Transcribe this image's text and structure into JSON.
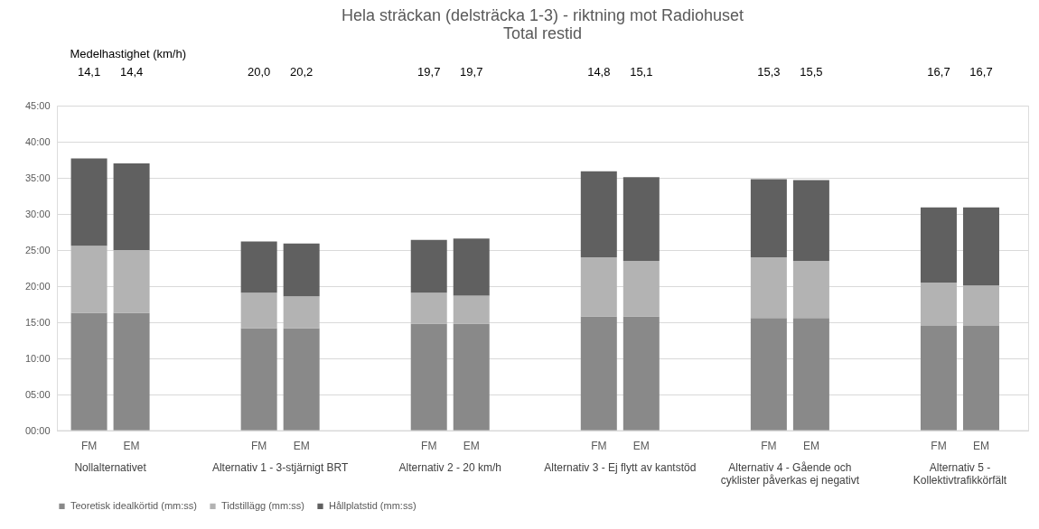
{
  "chart_data": {
    "type": "bar",
    "stacked": true,
    "title": "Hela sträckan (delsträcka 1-3) - riktning mot Radiohuset",
    "subtitle": "Total restid",
    "categories": [
      "FM",
      "EM",
      "FM",
      "EM",
      "FM",
      "EM",
      "FM",
      "EM",
      "FM",
      "EM",
      "FM",
      "EM"
    ],
    "series": [
      {
        "name": "Teoretisk idealkörtid (mm:ss)",
        "color": "#898989",
        "values": [
          16.3,
          16.3,
          14.2,
          14.2,
          14.8,
          14.8,
          15.8,
          15.8,
          15.6,
          15.6,
          14.5,
          14.5
        ]
      },
      {
        "name": "Tidstillägg (mm:ss)",
        "color": "#b3b3b3",
        "values": [
          9.3,
          8.7,
          4.9,
          4.4,
          4.3,
          3.9,
          8.2,
          7.7,
          8.4,
          7.9,
          6.0,
          5.6
        ]
      },
      {
        "name": "Hållplatstid (mm:ss)",
        "color": "#606060",
        "values": [
          12.1,
          12.0,
          7.1,
          7.3,
          7.3,
          7.9,
          11.9,
          11.6,
          10.8,
          11.2,
          10.4,
          10.8
        ]
      }
    ],
    "ylim": [
      0,
      45
    ],
    "yticks": [
      {
        "value": 0,
        "label": "00:00"
      },
      {
        "value": 5,
        "label": "05:00"
      },
      {
        "value": 10,
        "label": "10:00"
      },
      {
        "value": 15,
        "label": "15:00"
      },
      {
        "value": 20,
        "label": "20:00"
      },
      {
        "value": 25,
        "label": "25:00"
      },
      {
        "value": 30,
        "label": "30:00"
      },
      {
        "value": 35,
        "label": "35:00"
      },
      {
        "value": 40,
        "label": "40:00"
      },
      {
        "value": 45,
        "label": "45:00"
      }
    ],
    "grid": "y",
    "legend": "bottom",
    "annotations": [
      "Medelhastighet (km/h)",
      "14,1",
      "14,4",
      "20,0",
      "20,2",
      "19,7",
      "19,7",
      "14,8",
      "15,1",
      "15,3",
      "15,5",
      "16,7",
      "16,7",
      "Nollalternativet",
      "Alternativ 1 - 3-stjärnigt BRT",
      "Alternativ 2 - 20 km/h",
      "Alternativ 3 - Ej flytt av kantstöd",
      "Alternativ 4 - Gående och\ncyklister påverkas ej negativt",
      "Alternativ 5 -\nKollektivtrafikkörfält"
    ]
  }
}
